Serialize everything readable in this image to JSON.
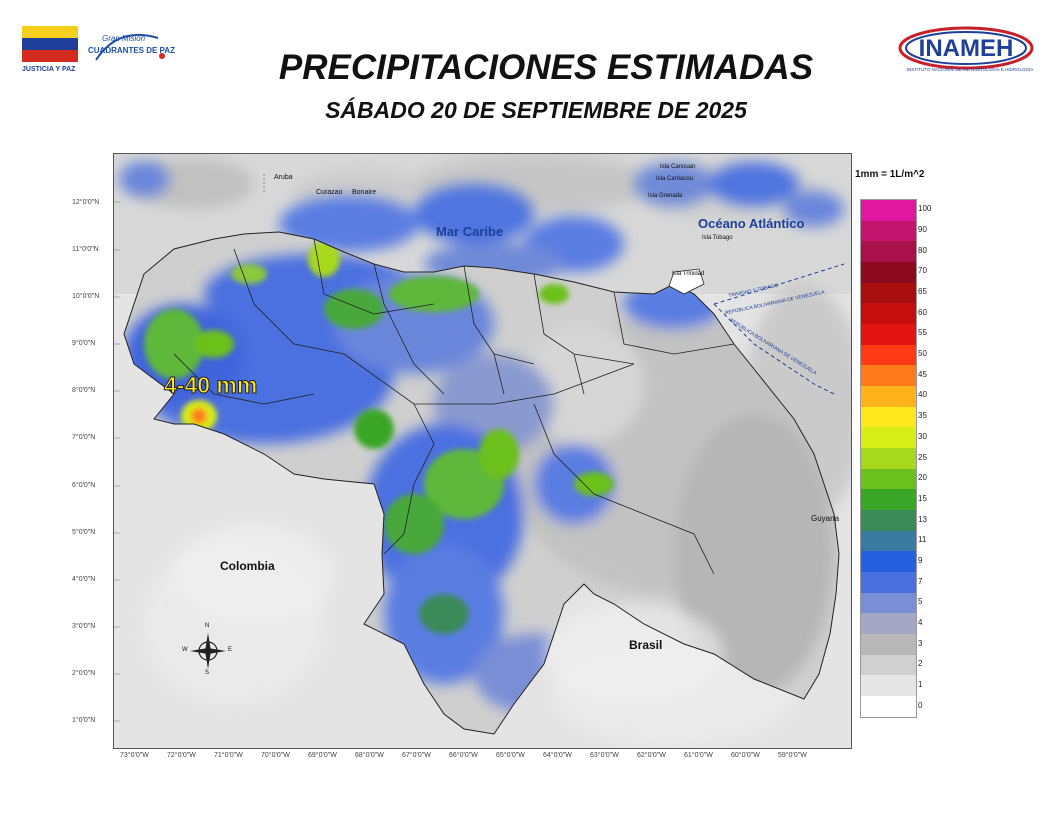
{
  "header": {
    "title": "PRECIPITACIONES ESTIMADAS",
    "subtitle": "SÁBADO 20 DE SEPTIEMBRE DE 2025",
    "logo_left_text": "JUSTICIA Y PAZ",
    "logo_mision_top": "Gran Misión",
    "logo_mision_main": "CUADRANTES DE PAZ",
    "logo_right_text": "INAMEH",
    "logo_right_sub": "INSTITUTO NACIONAL DE METEOROLOGÍA E HIDROLOGÍA"
  },
  "map": {
    "labels": {
      "mar_caribe": "Mar Caribe",
      "oceano": "Océano Atlántico",
      "colombia": "Colombia",
      "brasil": "Brasil",
      "guyana": "Guyana",
      "aruba": "Aruba",
      "curazao": "Curazao",
      "bonaire": "Bonaire",
      "canouan": "Isla Canouan",
      "carriacou": "Isla Carriacou",
      "grenada": "Isla Grenada",
      "tobago": "Isla Tobago",
      "trinidad": "Isla Trinidad",
      "tt_border": "TRINIDAD Y TOBAGO",
      "ve_border1": "REPÚBLICA BOLIVARIANA DE VENEZUELA",
      "ve_border2": "REPÚBLICA BOLIVARIANA DE VENEZUELA",
      "rain_annotation": "4-40 mm"
    },
    "compass": {
      "n": "N",
      "s": "S",
      "e": "E",
      "w": "W"
    },
    "latitudes": [
      "12°0'0\"N",
      "11°0'0\"N",
      "10°0'0\"N",
      "9°0'0\"N",
      "8°0'0\"N",
      "7°0'0\"N",
      "6°0'0\"N",
      "5°0'0\"N",
      "4°0'0\"N",
      "3°0'0\"N",
      "2°0'0\"N",
      "1°0'0\"N"
    ],
    "longitudes": [
      "73°0'0\"W",
      "72°0'0\"W",
      "71°0'0\"W",
      "70°0'0\"W",
      "69°0'0\"W",
      "68°0'0\"W",
      "67°0'0\"W",
      "66°0'0\"W",
      "65°0'0\"W",
      "64°0'0\"W",
      "63°0'0\"W",
      "62°0'0\"W",
      "61°0'0\"W",
      "60°0'0\"W",
      "59°0'0\"W"
    ]
  },
  "legend": {
    "unit": "1mm = 1L/m^2",
    "classes": [
      {
        "label": "100",
        "color": "#e0189f"
      },
      {
        "label": "90",
        "color": "#c4156e"
      },
      {
        "label": "80",
        "color": "#a8114a"
      },
      {
        "label": "70",
        "color": "#8b0a1e"
      },
      {
        "label": "65",
        "color": "#a80e0e"
      },
      {
        "label": "60",
        "color": "#c80f0f"
      },
      {
        "label": "55",
        "color": "#e31414"
      },
      {
        "label": "50",
        "color": "#ff3a14"
      },
      {
        "label": "45",
        "color": "#ff7a1a"
      },
      {
        "label": "40",
        "color": "#ffb21a"
      },
      {
        "label": "35",
        "color": "#ffe81e"
      },
      {
        "label": "30",
        "color": "#d6ee16"
      },
      {
        "label": "25",
        "color": "#a8d81e"
      },
      {
        "label": "20",
        "color": "#6cc01e"
      },
      {
        "label": "15",
        "color": "#3aa628"
      },
      {
        "label": "13",
        "color": "#3a8a5a"
      },
      {
        "label": "11",
        "color": "#3a7aa0"
      },
      {
        "label": "9",
        "color": "#2660e0"
      },
      {
        "label": "7",
        "color": "#4a70e0"
      },
      {
        "label": "5",
        "color": "#7a8ed6"
      },
      {
        "label": "4",
        "color": "#a4a8c4"
      },
      {
        "label": "3",
        "color": "#b8b8b8"
      },
      {
        "label": "2",
        "color": "#d0d0d0"
      },
      {
        "label": "1",
        "color": "#e6e6e6"
      },
      {
        "label": "0",
        "color": "#ffffff"
      }
    ]
  }
}
